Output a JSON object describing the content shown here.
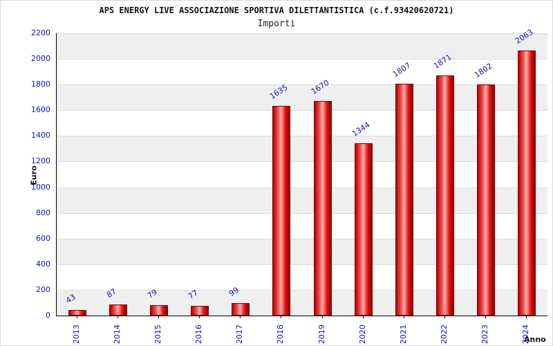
{
  "chart_data": {
    "type": "bar",
    "title": "APS ENERGY LIVE ASSOCIAZIONE SPORTIVA DILETTANTISTICA (c.f.93420620721)",
    "subtitle": "Importi",
    "xlabel": "Anno",
    "ylabel": "Euro",
    "categories": [
      "2013",
      "2014",
      "2015",
      "2016",
      "2017",
      "2018",
      "2019",
      "2020",
      "2021",
      "2022",
      "2023",
      "2024"
    ],
    "values": [
      43,
      87,
      79,
      77,
      99,
      1635,
      1670,
      1344,
      1807,
      1871,
      1802,
      2063
    ],
    "ylim": [
      0,
      2200
    ],
    "ytick_step": 200,
    "grid": true,
    "legend_position": "none",
    "colors": {
      "bar_fill_main": "#e01010",
      "bar_fill_light": "#ffadad",
      "bar_edge": "#7e0000",
      "tick_text": "#0f0fc0",
      "value_text": "#1414b8",
      "band_gray": "#efefef",
      "band_white": "#ffffff",
      "axis": "#000000"
    }
  }
}
